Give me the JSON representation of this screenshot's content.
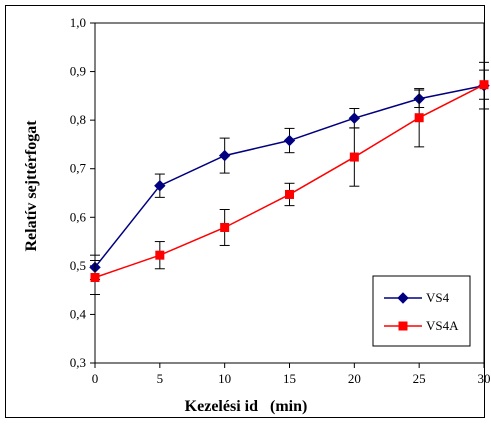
{
  "chart_data": {
    "type": "line",
    "x": [
      0,
      5,
      10,
      15,
      20,
      25,
      30
    ],
    "xticks": [
      "0",
      "5",
      "10",
      "15",
      "20",
      "25",
      "30"
    ],
    "yticks": [
      "0,3",
      "0,4",
      "0,5",
      "0,6",
      "0,7",
      "0,8",
      "0,9",
      "1,0"
    ],
    "xlim": [
      0,
      30
    ],
    "ylim": [
      0.3,
      1.0
    ],
    "xlabel": "Kezelési id   (min)",
    "ylabel": "Relatív sejttérfogat",
    "legend_position": "bottom-right",
    "grid": false,
    "series": [
      {
        "name": "VS4",
        "color": "#000080",
        "marker": "diamond",
        "values": [
          0.497,
          0.665,
          0.727,
          0.758,
          0.804,
          0.844,
          0.871
        ],
        "errors": [
          0.025,
          0.024,
          0.036,
          0.025,
          0.02,
          0.018,
          0.048
        ]
      },
      {
        "name": "VS4A",
        "color": "#ff0000",
        "marker": "square",
        "values": [
          0.476,
          0.522,
          0.579,
          0.647,
          0.724,
          0.805,
          0.873
        ],
        "errors": [
          0.035,
          0.028,
          0.037,
          0.023,
          0.06,
          0.06,
          0.03
        ]
      }
    ]
  }
}
